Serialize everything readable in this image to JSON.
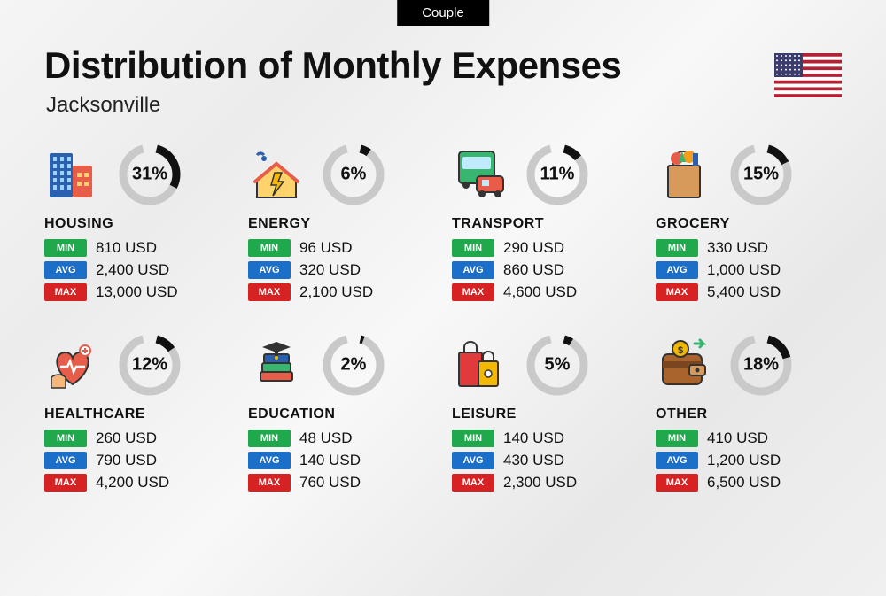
{
  "tab_label": "Couple",
  "title": "Distribution of Monthly Expenses",
  "subtitle": "Jacksonville",
  "currency": "USD",
  "colors": {
    "min_badge": "#1fa94c",
    "avg_badge": "#1b6fc9",
    "max_badge": "#d62222",
    "ring_fg": "#111111",
    "ring_bg": "#c9c9c9",
    "text": "#111111",
    "tab_bg": "#000000",
    "tab_fg": "#ffffff"
  },
  "ring": {
    "radius": 30,
    "stroke_width": 9,
    "gap_degrees": 30
  },
  "badges": {
    "min": "MIN",
    "avg": "AVG",
    "max": "MAX"
  },
  "flag": {
    "stripe_red": "#b22234",
    "stripe_white": "#ffffff",
    "canton": "#3c3b6e"
  },
  "categories": [
    {
      "key": "housing",
      "label": "HOUSING",
      "percent": 31,
      "min": "810",
      "avg": "2,400",
      "max": "13,000",
      "icon": "buildings"
    },
    {
      "key": "energy",
      "label": "ENERGY",
      "percent": 6,
      "min": "96",
      "avg": "320",
      "max": "2,100",
      "icon": "energy-house"
    },
    {
      "key": "transport",
      "label": "TRANSPORT",
      "percent": 11,
      "min": "290",
      "avg": "860",
      "max": "4,600",
      "icon": "bus-car"
    },
    {
      "key": "grocery",
      "label": "GROCERY",
      "percent": 15,
      "min": "330",
      "avg": "1,000",
      "max": "5,400",
      "icon": "grocery-bag"
    },
    {
      "key": "healthcare",
      "label": "HEALTHCARE",
      "percent": 12,
      "min": "260",
      "avg": "790",
      "max": "4,200",
      "icon": "health-heart"
    },
    {
      "key": "education",
      "label": "EDUCATION",
      "percent": 2,
      "min": "48",
      "avg": "140",
      "max": "760",
      "icon": "grad-books"
    },
    {
      "key": "leisure",
      "label": "LEISURE",
      "percent": 5,
      "min": "140",
      "avg": "430",
      "max": "2,300",
      "icon": "shopping-bags"
    },
    {
      "key": "other",
      "label": "OTHER",
      "percent": 18,
      "min": "410",
      "avg": "1,200",
      "max": "6,500",
      "icon": "wallet"
    }
  ]
}
